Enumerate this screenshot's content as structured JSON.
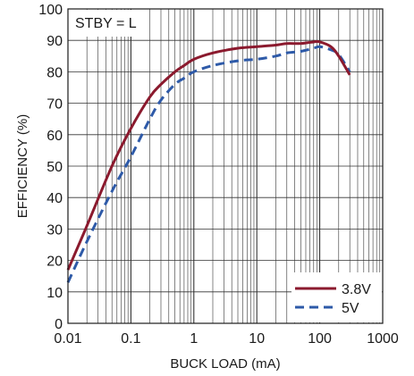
{
  "chart_data": {
    "type": "line",
    "xlabel": "BUCK LOAD (mA)",
    "ylabel": "EFFICIENCY (%)",
    "xscale": "log",
    "xlim": [
      0.01,
      1000
    ],
    "ylim": [
      0,
      100
    ],
    "grid": true,
    "xticks": [
      "0.01",
      "0.1",
      "1",
      "10",
      "100",
      "1000"
    ],
    "yticks": [
      "0",
      "10",
      "20",
      "30",
      "40",
      "50",
      "60",
      "70",
      "80",
      "90",
      "100"
    ],
    "annotation": "STBY = L",
    "legend_position": "bottom-right",
    "series": [
      {
        "name": "3.8V",
        "color": "#8b1a2e",
        "style": "solid",
        "x": [
          0.01,
          0.02,
          0.05,
          0.1,
          0.2,
          0.3,
          0.5,
          0.7,
          1,
          2,
          5,
          10,
          20,
          30,
          50,
          80,
          100,
          150,
          200,
          300
        ],
        "y": [
          17,
          31,
          50,
          62,
          72,
          76,
          80,
          82,
          84,
          86,
          87.5,
          88,
          88.5,
          89,
          89,
          89.5,
          89.5,
          88,
          85,
          79
        ]
      },
      {
        "name": "5V",
        "color": "#2e5aa8",
        "style": "dashed",
        "x": [
          0.01,
          0.02,
          0.05,
          0.1,
          0.2,
          0.3,
          0.5,
          0.7,
          1,
          2,
          5,
          10,
          20,
          30,
          50,
          80,
          100,
          150,
          200,
          300
        ],
        "y": [
          13,
          26,
          42,
          53,
          65,
          71,
          76,
          78,
          80,
          82,
          83.5,
          84,
          85,
          86,
          86.5,
          87.5,
          88,
          87,
          85.5,
          80
        ]
      }
    ]
  }
}
